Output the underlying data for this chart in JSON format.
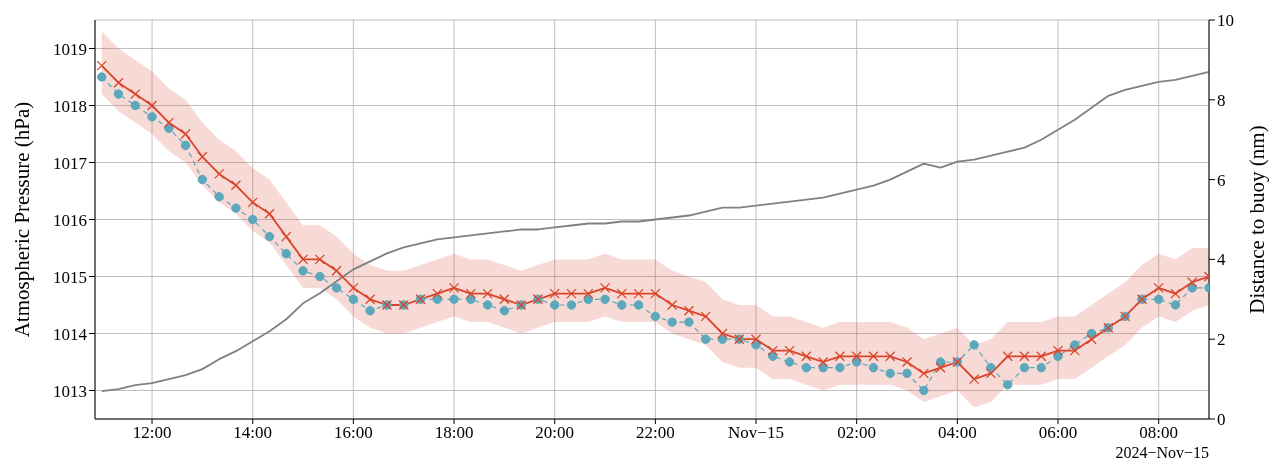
{
  "chart_data": {
    "type": "line",
    "ylabel": "Atmospheric Pressure (hPa)",
    "y2label": "Distance to buoy (nm)",
    "annotations": [
      "2024−Nov−15"
    ],
    "x": [
      "2024-11-14T11:00",
      "2024-11-14T11:20",
      "2024-11-14T11:40",
      "2024-11-14T12:00",
      "2024-11-14T12:20",
      "2024-11-14T12:40",
      "2024-11-14T13:00",
      "2024-11-14T13:20",
      "2024-11-14T13:40",
      "2024-11-14T14:00",
      "2024-11-14T14:20",
      "2024-11-14T14:40",
      "2024-11-14T15:00",
      "2024-11-14T15:20",
      "2024-11-14T15:40",
      "2024-11-14T16:00",
      "2024-11-14T16:20",
      "2024-11-14T16:40",
      "2024-11-14T17:00",
      "2024-11-14T17:20",
      "2024-11-14T17:40",
      "2024-11-14T18:00",
      "2024-11-14T18:20",
      "2024-11-14T18:40",
      "2024-11-14T19:00",
      "2024-11-14T19:20",
      "2024-11-14T19:40",
      "2024-11-14T20:00",
      "2024-11-14T20:20",
      "2024-11-14T20:40",
      "2024-11-14T21:00",
      "2024-11-14T21:20",
      "2024-11-14T21:40",
      "2024-11-14T22:00",
      "2024-11-14T22:20",
      "2024-11-14T22:40",
      "2024-11-14T23:00",
      "2024-11-14T23:20",
      "2024-11-14T23:40",
      "2024-11-15T00:00",
      "2024-11-15T00:20",
      "2024-11-15T00:40",
      "2024-11-15T01:00",
      "2024-11-15T01:20",
      "2024-11-15T01:40",
      "2024-11-15T02:00",
      "2024-11-15T02:20",
      "2024-11-15T02:40",
      "2024-11-15T03:00",
      "2024-11-15T03:20",
      "2024-11-15T03:40",
      "2024-11-15T04:00",
      "2024-11-15T04:20",
      "2024-11-15T04:40",
      "2024-11-15T05:00",
      "2024-11-15T05:20",
      "2024-11-15T05:40",
      "2024-11-15T06:00",
      "2024-11-15T06:20",
      "2024-11-15T06:40",
      "2024-11-15T07:00",
      "2024-11-15T07:20",
      "2024-11-15T07:40",
      "2024-11-15T08:00",
      "2024-11-15T08:20",
      "2024-11-15T08:40",
      "2024-11-15T09:00"
    ],
    "series": [
      {
        "color": "#808080",
        "axis": "y2",
        "marker": "none",
        "line_style": "solid",
        "values": [
          0.7,
          0.75,
          0.85,
          0.9,
          1.0,
          1.1,
          1.25,
          1.5,
          1.7,
          1.95,
          2.2,
          2.5,
          2.9,
          3.15,
          3.45,
          3.75,
          3.95,
          4.15,
          4.3,
          4.4,
          4.5,
          4.55,
          4.6,
          4.65,
          4.7,
          4.75,
          4.75,
          4.8,
          4.85,
          4.9,
          4.9,
          4.95,
          4.95,
          5.0,
          5.05,
          5.1,
          5.2,
          5.3,
          5.3,
          5.35,
          5.4,
          5.45,
          5.5,
          5.55,
          5.65,
          5.75,
          5.85,
          6.0,
          6.2,
          6.4,
          6.3,
          6.45,
          6.5,
          6.6,
          6.7,
          6.8,
          7.0,
          7.25,
          7.5,
          7.8,
          8.1,
          8.25,
          8.35,
          8.45,
          8.5,
          8.6,
          8.7
        ]
      },
      {
        "color": "#5ba8bd",
        "marker": "circle",
        "line_style": "dashed",
        "values": [
          1018.5,
          1018.2,
          1018.0,
          1017.8,
          1017.6,
          1017.3,
          1016.7,
          1016.4,
          1016.2,
          1016.0,
          1015.7,
          1015.4,
          1015.1,
          1015.0,
          1014.8,
          1014.6,
          1014.4,
          1014.5,
          1014.5,
          1014.6,
          1014.6,
          1014.6,
          1014.6,
          1014.5,
          1014.4,
          1014.5,
          1014.6,
          1014.5,
          1014.5,
          1014.6,
          1014.6,
          1014.5,
          1014.5,
          1014.3,
          1014.2,
          1014.2,
          1013.9,
          1013.9,
          1013.9,
          1013.8,
          1013.6,
          1013.5,
          1013.4,
          1013.4,
          1013.4,
          1013.5,
          1013.4,
          1013.3,
          1013.3,
          1013.0,
          1013.5,
          1013.5,
          1013.8,
          1013.4,
          1013.1,
          1013.4,
          1013.4,
          1013.6,
          1013.8,
          1014.0,
          1014.1,
          1014.3,
          1014.6,
          1014.6,
          1014.5,
          1014.8,
          1014.8
        ]
      },
      {
        "color": "#d9452b",
        "marker": "cross",
        "line_style": "solid",
        "values": [
          1018.7,
          1018.4,
          1018.2,
          1018.0,
          1017.7,
          1017.5,
          1017.1,
          1016.8,
          1016.6,
          1016.3,
          1016.1,
          1015.7,
          1015.3,
          1015.3,
          1015.1,
          1014.8,
          1014.6,
          1014.5,
          1014.5,
          1014.6,
          1014.7,
          1014.8,
          1014.7,
          1014.7,
          1014.6,
          1014.5,
          1014.6,
          1014.7,
          1014.7,
          1014.7,
          1014.8,
          1014.7,
          1014.7,
          1014.7,
          1014.5,
          1014.4,
          1014.3,
          1014.0,
          1013.9,
          1013.9,
          1013.7,
          1013.7,
          1013.6,
          1013.5,
          1013.6,
          1013.6,
          1013.6,
          1013.6,
          1013.5,
          1013.3,
          1013.4,
          1013.5,
          1013.2,
          1013.3,
          1013.6,
          1013.6,
          1013.6,
          1013.7,
          1013.7,
          1013.9,
          1014.1,
          1014.3,
          1014.6,
          1014.8,
          1014.7,
          1014.9,
          1015.0
        ],
        "upper": [
          1019.3,
          1019.0,
          1018.8,
          1018.6,
          1018.3,
          1018.1,
          1017.7,
          1017.4,
          1017.2,
          1016.9,
          1016.7,
          1016.3,
          1015.9,
          1015.9,
          1015.7,
          1015.4,
          1015.2,
          1015.1,
          1015.1,
          1015.2,
          1015.3,
          1015.4,
          1015.3,
          1015.3,
          1015.2,
          1015.1,
          1015.2,
          1015.3,
          1015.3,
          1015.3,
          1015.4,
          1015.3,
          1015.3,
          1015.3,
          1015.1,
          1015.0,
          1014.9,
          1014.6,
          1014.5,
          1014.5,
          1014.3,
          1014.3,
          1014.2,
          1014.1,
          1014.2,
          1014.2,
          1014.2,
          1014.2,
          1014.1,
          1013.9,
          1014.0,
          1014.1,
          1013.8,
          1013.9,
          1014.2,
          1014.2,
          1014.2,
          1014.3,
          1014.3,
          1014.5,
          1014.7,
          1014.9,
          1015.2,
          1015.4,
          1015.3,
          1015.5,
          1015.5
        ],
        "lower": [
          1018.2,
          1017.9,
          1017.7,
          1017.5,
          1017.2,
          1017.0,
          1016.6,
          1016.3,
          1016.1,
          1015.8,
          1015.6,
          1015.2,
          1014.8,
          1014.8,
          1014.6,
          1014.3,
          1014.1,
          1014.0,
          1014.0,
          1014.1,
          1014.2,
          1014.3,
          1014.2,
          1014.2,
          1014.1,
          1014.0,
          1014.1,
          1014.2,
          1014.2,
          1014.2,
          1014.3,
          1014.2,
          1014.2,
          1014.2,
          1014.0,
          1013.9,
          1013.8,
          1013.5,
          1013.4,
          1013.4,
          1013.2,
          1013.2,
          1013.1,
          1013.0,
          1013.1,
          1013.1,
          1013.1,
          1013.1,
          1013.0,
          1012.8,
          1012.9,
          1013.0,
          1012.7,
          1012.8,
          1013.1,
          1013.1,
          1013.1,
          1013.2,
          1013.2,
          1013.4,
          1013.6,
          1013.8,
          1014.1,
          1014.3,
          1014.2,
          1014.4,
          1014.5
        ]
      }
    ],
    "xlim": [
      "2024-11-14T10:52",
      "2024-11-15T09:00"
    ],
    "xticks": [
      {
        "value": "2024-11-14T12:00",
        "label": "12:00"
      },
      {
        "value": "2024-11-14T14:00",
        "label": "14:00"
      },
      {
        "value": "2024-11-14T16:00",
        "label": "16:00"
      },
      {
        "value": "2024-11-14T18:00",
        "label": "18:00"
      },
      {
        "value": "2024-11-14T20:00",
        "label": "20:00"
      },
      {
        "value": "2024-11-14T22:00",
        "label": "22:00"
      },
      {
        "value": "2024-11-15T00:00",
        "label": "Nov−15"
      },
      {
        "value": "2024-11-15T02:00",
        "label": "02:00"
      },
      {
        "value": "2024-11-15T04:00",
        "label": "04:00"
      },
      {
        "value": "2024-11-15T06:00",
        "label": "06:00"
      },
      {
        "value": "2024-11-15T08:00",
        "label": "08:00"
      }
    ],
    "ylim": [
      1012.5,
      1019.5
    ],
    "yticks": [
      1013,
      1014,
      1015,
      1016,
      1017,
      1018,
      1019
    ],
    "y2lim": [
      0,
      10
    ],
    "y2ticks": [
      0,
      2,
      4,
      6,
      8,
      10
    ],
    "grid": true,
    "legend": false
  }
}
